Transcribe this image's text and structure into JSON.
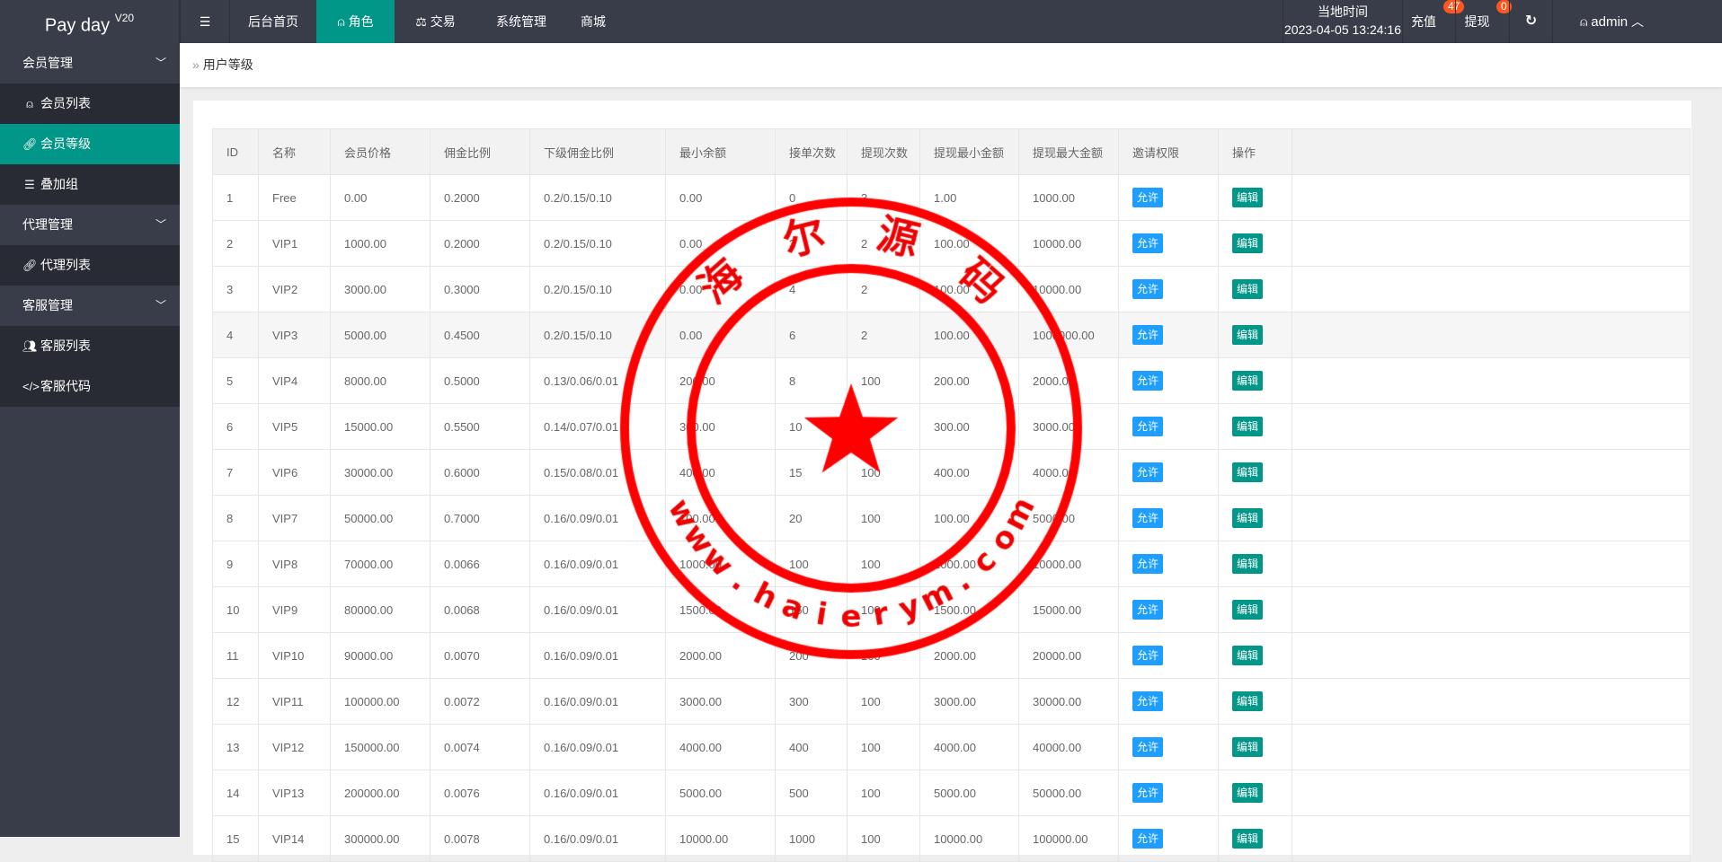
{
  "app": {
    "brand": "Pay day",
    "version": "V20"
  },
  "topnav": {
    "items": [
      {
        "label": "后台首页"
      },
      {
        "label": "角色",
        "icon": "user-icon",
        "active": true
      },
      {
        "label": "交易",
        "icon": "scale-icon"
      },
      {
        "label": "系统管理"
      },
      {
        "label": "商城"
      }
    ]
  },
  "header": {
    "time_label": "当地时间",
    "time_value": "2023-04-05 13:24:16",
    "recharge": "充值",
    "recharge_count": "47",
    "withdraw": "提现",
    "withdraw_count": "0",
    "user": "admin"
  },
  "sidebar": {
    "groups": [
      {
        "label": "会员管理",
        "items": [
          {
            "label": "会员列表",
            "icon": "user-icon"
          },
          {
            "label": "会员等级",
            "icon": "link-icon",
            "active": true
          },
          {
            "label": "叠加组",
            "icon": "list-icon"
          }
        ]
      },
      {
        "label": "代理管理",
        "items": [
          {
            "label": "代理列表",
            "icon": "link-icon"
          }
        ]
      },
      {
        "label": "客服管理",
        "items": [
          {
            "label": "客服列表",
            "icon": "users-icon"
          },
          {
            "label": "客服代码",
            "icon": "code-icon"
          }
        ]
      }
    ]
  },
  "breadcrumb": {
    "current": "用户等级"
  },
  "table": {
    "columns": [
      "ID",
      "名称",
      "会员价格",
      "佣金比例",
      "下级佣金比例",
      "最小余额",
      "接单次数",
      "提现次数",
      "提现最小金额",
      "提现最大金额",
      "邀请权限",
      "操作"
    ],
    "allow_label": "允许",
    "edit_label": "编辑",
    "rows": [
      [
        "1",
        "Free",
        "0.00",
        "0.2000",
        "0.2/0.15/0.10",
        "0.00",
        "0",
        "3",
        "1.00",
        "1000.00"
      ],
      [
        "2",
        "VIP1",
        "1000.00",
        "0.2000",
        "0.2/0.15/0.10",
        "0.00",
        "3",
        "2",
        "100.00",
        "10000.00"
      ],
      [
        "3",
        "VIP2",
        "3000.00",
        "0.3000",
        "0.2/0.15/0.10",
        "0.00",
        "4",
        "2",
        "100.00",
        "10000.00"
      ],
      [
        "4",
        "VIP3",
        "5000.00",
        "0.4500",
        "0.2/0.15/0.10",
        "0.00",
        "6",
        "2",
        "100.00",
        "1000000.00"
      ],
      [
        "5",
        "VIP4",
        "8000.00",
        "0.5000",
        "0.13/0.06/0.01",
        "200.00",
        "8",
        "100",
        "200.00",
        "2000.00"
      ],
      [
        "6",
        "VIP5",
        "15000.00",
        "0.5500",
        "0.14/0.07/0.01",
        "300.00",
        "10",
        "100",
        "300.00",
        "3000.00"
      ],
      [
        "7",
        "VIP6",
        "30000.00",
        "0.6000",
        "0.15/0.08/0.01",
        "400.00",
        "15",
        "100",
        "400.00",
        "4000.00"
      ],
      [
        "8",
        "VIP7",
        "50000.00",
        "0.7000",
        "0.16/0.09/0.01",
        "100.00",
        "20",
        "100",
        "100.00",
        "5000.00"
      ],
      [
        "9",
        "VIP8",
        "70000.00",
        "0.0066",
        "0.16/0.09/0.01",
        "1000.00",
        "100",
        "100",
        "1000.00",
        "10000.00"
      ],
      [
        "10",
        "VIP9",
        "80000.00",
        "0.0068",
        "0.16/0.09/0.01",
        "1500.00",
        "150",
        "100",
        "1500.00",
        "15000.00"
      ],
      [
        "11",
        "VIP10",
        "90000.00",
        "0.0070",
        "0.16/0.09/0.01",
        "2000.00",
        "200",
        "100",
        "2000.00",
        "20000.00"
      ],
      [
        "12",
        "VIP11",
        "100000.00",
        "0.0072",
        "0.16/0.09/0.01",
        "3000.00",
        "300",
        "100",
        "3000.00",
        "30000.00"
      ],
      [
        "13",
        "VIP12",
        "150000.00",
        "0.0074",
        "0.16/0.09/0.01",
        "4000.00",
        "400",
        "100",
        "4000.00",
        "40000.00"
      ],
      [
        "14",
        "VIP13",
        "200000.00",
        "0.0076",
        "0.16/0.09/0.01",
        "5000.00",
        "500",
        "100",
        "5000.00",
        "50000.00"
      ],
      [
        "15",
        "VIP14",
        "300000.00",
        "0.0078",
        "0.16/0.09/0.01",
        "10000.00",
        "1000",
        "100",
        "10000.00",
        "100000.00"
      ]
    ]
  },
  "watermark": {
    "top_text": "海尔源码",
    "bottom_text": "www.haierym.com",
    "color": "#ff0000"
  },
  "colors": {
    "accent": "#009688",
    "allow": "#1e9fff",
    "badge": "#ff5722",
    "topbar": "#393d49"
  }
}
